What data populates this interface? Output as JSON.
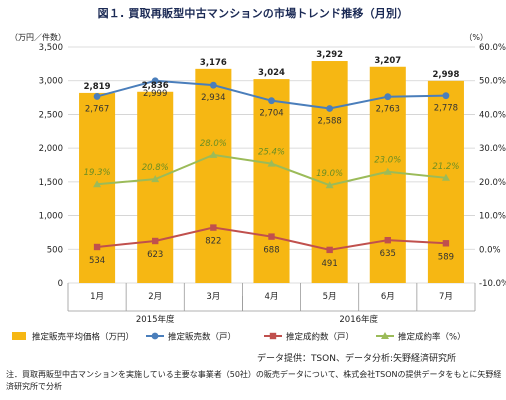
{
  "title": "図１. 買取再販型中古マンションの市場トレンド推移（月別）",
  "source": "データ提供：TSON、データ分析:矢野経済研究所",
  "note": "注．買取再販型中古マンションを実施している主要な事業者（50社）の販売データについて、株式会社TSONの提供データをもとに矢野経済研究所で分析",
  "chart_data": {
    "type": "bar",
    "categories": [
      "1月",
      "2月",
      "3月",
      "4月",
      "5月",
      "6月",
      "7月"
    ],
    "year_labels": [
      {
        "label": "2015年度",
        "months": [
          "1月",
          "2月",
          "3月"
        ]
      },
      {
        "label": "2016年度",
        "months": [
          "4月",
          "5月",
          "6月",
          "7月"
        ]
      }
    ],
    "left_axis": {
      "unit": "（万円／件数）",
      "ylim": [
        0,
        3500
      ],
      "ticks": [
        "0",
        "500",
        "1,000",
        "1,500",
        "2,000",
        "2,500",
        "3,000",
        "3,500"
      ]
    },
    "right_axis": {
      "unit": "（%）",
      "ylim": [
        -10,
        60
      ],
      "ticks": [
        "-10.0%",
        "0.0%",
        "10.0%",
        "20.0%",
        "30.0%",
        "40.0%",
        "50.0%",
        "60.0%"
      ]
    },
    "grid": true,
    "legend_position": "bottom",
    "series": [
      {
        "name": "推定販売平均価格（万円）",
        "kind": "bar",
        "axis": "left",
        "color": "#f6b713",
        "values": [
          2819,
          2836,
          3176,
          3024,
          3292,
          3207,
          2998
        ],
        "labels": [
          "2,819",
          "2,836",
          "3,176",
          "3,024",
          "3,292",
          "3,207",
          "2,998"
        ]
      },
      {
        "name": "推定販売数（戸）",
        "kind": "line",
        "axis": "left",
        "color": "#4a7ebb",
        "values": [
          2767,
          2999,
          2934,
          2704,
          2588,
          2763,
          2778
        ],
        "labels": [
          "2,767",
          "2,999",
          "2,934",
          "2,704",
          "2,588",
          "2,763",
          "2,778"
        ]
      },
      {
        "name": "推定成約数（戸）",
        "kind": "line",
        "axis": "left",
        "color": "#c0504d",
        "values": [
          534,
          623,
          822,
          688,
          491,
          635,
          589
        ],
        "labels": [
          "534",
          "623",
          "822",
          "688",
          "491",
          "635",
          "589"
        ]
      },
      {
        "name": "推定成約率（%）",
        "kind": "line",
        "axis": "right",
        "color": "#9bbb59",
        "values": [
          19.3,
          20.8,
          28.0,
          25.4,
          19.0,
          23.0,
          21.2
        ],
        "labels": [
          "19.3%",
          "20.8%",
          "28.0%",
          "25.4%",
          "19.0%",
          "23.0%",
          "21.2%"
        ]
      }
    ]
  }
}
